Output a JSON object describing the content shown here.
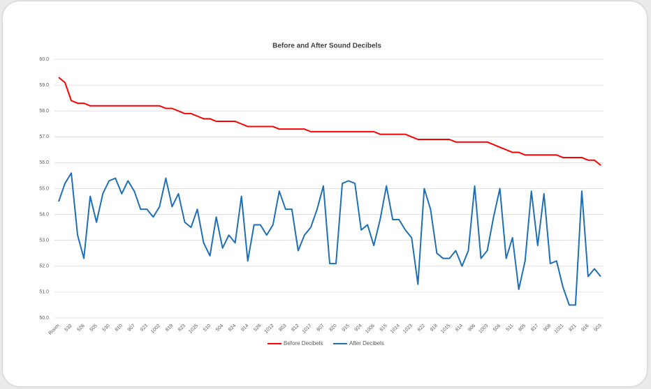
{
  "chart_data": {
    "type": "line",
    "title": "Before and After Sound Decibels",
    "categories": [
      "Room",
      null,
      "532",
      null,
      "526",
      null,
      "505",
      null,
      "530",
      null,
      "810",
      null,
      "907",
      null,
      "923",
      null,
      "1002",
      null,
      "819",
      null,
      "823",
      null,
      "1025",
      null,
      "510",
      null,
      "504",
      null,
      "824",
      null,
      "914",
      null,
      "528",
      null,
      "1012",
      null,
      "803",
      null,
      "812",
      null,
      "1017",
      null,
      "807",
      null,
      "820",
      null,
      "915",
      null,
      "924",
      null,
      "1006",
      null,
      "815",
      null,
      "1014",
      null,
      "1023",
      null,
      "822",
      null,
      "918",
      null,
      "1015",
      null,
      "814",
      null,
      "906",
      null,
      "1003",
      null,
      "506",
      null,
      "511",
      null,
      "805",
      null,
      "817",
      null,
      "908",
      null,
      "1021",
      null,
      "821",
      null,
      "916",
      null,
      "903"
    ],
    "series": [
      {
        "name": "Before Decibels",
        "color": "#ff0000",
        "values": [
          59.3,
          59.1,
          58.4,
          58.3,
          58.3,
          58.2,
          58.2,
          58.2,
          58.2,
          58.2,
          58.2,
          58.2,
          58.2,
          58.2,
          58.2,
          58.2,
          58.2,
          58.1,
          58.1,
          58.0,
          57.9,
          57.9,
          57.8,
          57.7,
          57.7,
          57.6,
          57.6,
          57.6,
          57.6,
          57.5,
          57.4,
          57.4,
          57.4,
          57.4,
          57.4,
          57.3,
          57.3,
          57.3,
          57.3,
          57.3,
          57.2,
          57.2,
          57.2,
          57.2,
          57.2,
          57.2,
          57.2,
          57.2,
          57.2,
          57.2,
          57.2,
          57.1,
          57.1,
          57.1,
          57.1,
          57.1,
          57.0,
          56.9,
          56.9,
          56.9,
          56.9,
          56.9,
          56.9,
          56.8,
          56.8,
          56.8,
          56.8,
          56.8,
          56.8,
          56.7,
          56.6,
          56.5,
          56.4,
          56.4,
          56.3,
          56.3,
          56.3,
          56.3,
          56.3,
          56.3,
          56.2,
          56.2,
          56.2,
          56.2,
          56.1,
          56.1,
          55.9
        ]
      },
      {
        "name": "After Decibels",
        "color": "#1f6fb5",
        "values": [
          54.5,
          55.2,
          55.6,
          53.2,
          52.3,
          54.7,
          53.7,
          54.8,
          55.3,
          55.4,
          54.8,
          55.3,
          54.9,
          54.2,
          54.2,
          53.9,
          54.3,
          55.4,
          54.3,
          54.8,
          53.7,
          53.5,
          54.2,
          52.9,
          52.4,
          53.9,
          52.7,
          53.2,
          52.9,
          54.7,
          52.2,
          53.6,
          53.6,
          53.2,
          53.6,
          54.9,
          54.2,
          54.2,
          52.6,
          53.2,
          53.5,
          54.2,
          55.1,
          52.1,
          52.1,
          55.2,
          55.3,
          55.2,
          53.4,
          53.6,
          52.8,
          53.8,
          55.1,
          53.8,
          53.8,
          53.4,
          53.1,
          51.3,
          55.0,
          54.2,
          52.5,
          52.3,
          52.3,
          52.6,
          52.0,
          52.6,
          55.1,
          52.3,
          52.6,
          53.9,
          55.0,
          52.3,
          53.1,
          51.1,
          52.2,
          54.9,
          52.8,
          54.8,
          52.1,
          52.2,
          51.2,
          50.5,
          50.5,
          54.9,
          51.6,
          51.9,
          51.6
        ]
      }
    ],
    "ylim": [
      50,
      60
    ],
    "yticks": [
      {
        "value": 50,
        "label": "50.0"
      },
      {
        "value": 51,
        "label": "51.0"
      },
      {
        "value": 52,
        "label": "52.0"
      },
      {
        "value": 53,
        "label": "53.0"
      },
      {
        "value": 54,
        "label": "54.0"
      },
      {
        "value": 55,
        "label": "55.0"
      },
      {
        "value": 56,
        "label": "56.0"
      },
      {
        "value": 57,
        "label": "57.0"
      },
      {
        "value": 58,
        "label": "58.0"
      },
      {
        "value": 59,
        "label": "59.0"
      },
      {
        "value": 60,
        "label": "60.0"
      }
    ],
    "grid": true,
    "legend": "bottom"
  }
}
